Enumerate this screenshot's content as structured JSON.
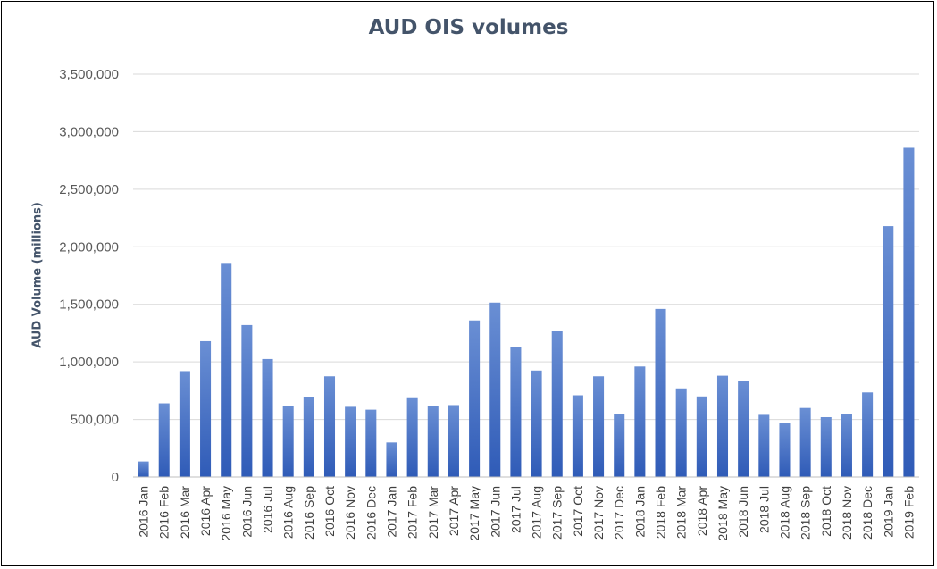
{
  "chart_data": {
    "type": "bar",
    "title": "AUD OIS volumes",
    "xlabel": "",
    "ylabel": "AUD Volume (millions)",
    "ylim": [
      0,
      3500000
    ],
    "yticks": [
      0,
      500000,
      1000000,
      1500000,
      2000000,
      2500000,
      3000000,
      3500000
    ],
    "ytick_labels": [
      "0",
      "500,000",
      "1,000,000",
      "1,500,000",
      "2,000,000",
      "2,500,000",
      "3,000,000",
      "3,500,000"
    ],
    "grid": true,
    "bar_color": "#4472c4",
    "categories": [
      "2016 Jan",
      "2016 Feb",
      "2016 Mar",
      "2016 Apr",
      "2016 May",
      "2016 Jun",
      "2016 Jul",
      "2016 Aug",
      "2016 Sep",
      "2016 Oct",
      "2016 Nov",
      "2016 Dec",
      "2017 Jan",
      "2017 Feb",
      "2017 Mar",
      "2017 Apr",
      "2017 May",
      "2017 Jun",
      "2017 Jul",
      "2017 Aug",
      "2017 Sep",
      "2017 Oct",
      "2017 Nov",
      "2017 Dec",
      "2018 Jan",
      "2018 Feb",
      "2018 Mar",
      "2018 Apr",
      "2018 May",
      "2018 Jun",
      "2018 Jul",
      "2018 Aug",
      "2018 Sep",
      "2018 Oct",
      "2018 Nov",
      "2018 Dec",
      "2019 Jan",
      "2019 Feb"
    ],
    "values": [
      135000,
      640000,
      920000,
      1180000,
      1860000,
      1320000,
      1025000,
      615000,
      695000,
      875000,
      610000,
      585000,
      300000,
      685000,
      615000,
      625000,
      1360000,
      1515000,
      1130000,
      925000,
      1270000,
      710000,
      875000,
      550000,
      960000,
      1460000,
      770000,
      700000,
      880000,
      835000,
      540000,
      470000,
      600000,
      520000,
      550000,
      735000,
      2180000,
      2860000
    ]
  }
}
